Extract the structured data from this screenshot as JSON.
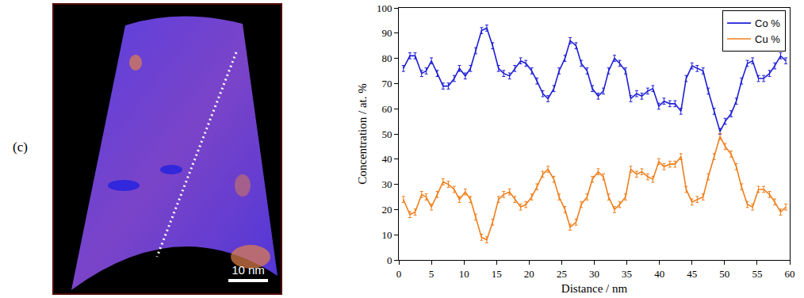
{
  "panel_label": "(c)",
  "image": {
    "scale_bar": "10 nm"
  },
  "chart_data": {
    "type": "line",
    "x_label": "Distance / nm",
    "y_label": "Concentration / at. %",
    "x": [
      0.7,
      1.7,
      2.5,
      3.5,
      4.2,
      5,
      5.9,
      6.8,
      7.6,
      8.5,
      9.3,
      10.2,
      11,
      11.8,
      12.7,
      13.5,
      14.4,
      15.3,
      16.1,
      17,
      17.8,
      18.7,
      19.5,
      20.4,
      21.2,
      22.1,
      22.9,
      23.8,
      24.6,
      25.5,
      26.3,
      27.2,
      28,
      28.9,
      29.7,
      30.6,
      31.4,
      32.2,
      33.1,
      33.9,
      34.8,
      35.6,
      36.5,
      37.3,
      38.2,
      39,
      39.9,
      40.7,
      41.6,
      42.4,
      43.3,
      44.1,
      45,
      45.8,
      46.7,
      47.5,
      48.4,
      49.3,
      50.1,
      51,
      51.8,
      52.6,
      53.5,
      54.3,
      55.2,
      56,
      56.9,
      57.7,
      58.6,
      59.4
    ],
    "series": [
      {
        "name": "Co %",
        "color": "#1f1fd6",
        "error": 1.2,
        "values": [
          76,
          81,
          81,
          74,
          75,
          79,
          74,
          69,
          69,
          72,
          76,
          73,
          76,
          83,
          91,
          92,
          85,
          76,
          74,
          73,
          76,
          79,
          78,
          75,
          71,
          66,
          64,
          68,
          75,
          80,
          87,
          85,
          78,
          75,
          68,
          65,
          67,
          75,
          80,
          78,
          75,
          64,
          66,
          65,
          67,
          68,
          61,
          63,
          62,
          62,
          59,
          72,
          77,
          76,
          75,
          67,
          59,
          51,
          55,
          58,
          63,
          71,
          78,
          79,
          72,
          72,
          74,
          77,
          81,
          79
        ]
      },
      {
        "name": "Cu %",
        "color": "#f07f1c",
        "error": 1.2,
        "values": [
          24,
          18,
          19,
          26,
          25,
          21,
          26,
          31,
          30,
          28,
          24,
          27,
          24,
          17,
          9,
          8,
          15,
          24,
          26,
          27,
          24,
          21,
          22,
          25,
          29,
          34,
          36,
          32,
          25,
          20,
          13,
          15,
          22,
          25,
          32,
          35,
          33,
          25,
          20,
          22,
          25,
          36,
          34,
          35,
          33,
          32,
          39,
          37,
          38,
          38,
          41,
          28,
          23,
          24,
          25,
          33,
          41,
          49,
          45,
          42,
          37,
          29,
          22,
          21,
          28,
          28,
          26,
          23,
          19,
          21
        ]
      }
    ],
    "xlim": [
      0,
      60
    ],
    "xticks": [
      0,
      5,
      10,
      15,
      20,
      25,
      30,
      35,
      40,
      45,
      50,
      55,
      60
    ],
    "ylim": [
      0,
      100
    ],
    "yticks": [
      0,
      10,
      20,
      30,
      40,
      50,
      60,
      70,
      80,
      90,
      100
    ],
    "grid": false,
    "legend": "upper right"
  }
}
